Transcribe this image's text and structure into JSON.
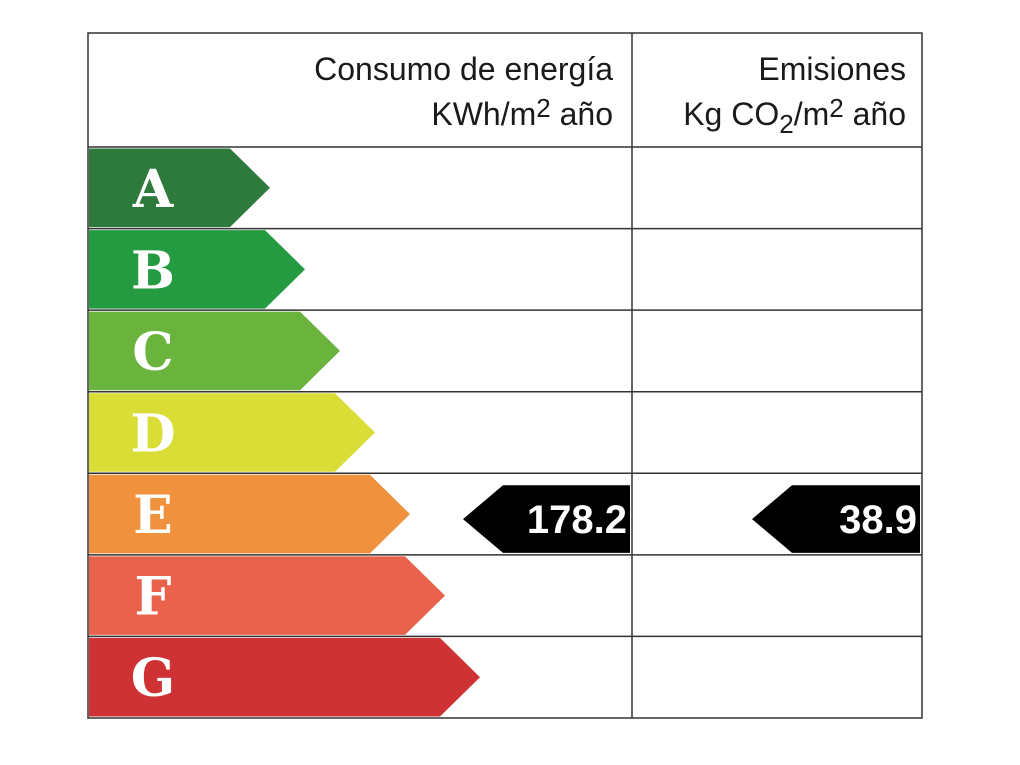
{
  "header": {
    "consumption": {
      "title": "Consumo de energía",
      "unit": {
        "base": "KWh/m",
        "sup": "2",
        "suffix": "año"
      }
    },
    "emissions": {
      "title": "Emisiones",
      "unit": {
        "prefix": "Kg CO",
        "sub": "2",
        "base": "/m",
        "sup": "2",
        "suffix": "año"
      }
    }
  },
  "ratings": [
    {
      "letter": "A",
      "color": "#2e7a3c"
    },
    {
      "letter": "B",
      "color": "#249a41"
    },
    {
      "letter": "C",
      "color": "#6ab33d"
    },
    {
      "letter": "D",
      "color": "#d9dd35"
    },
    {
      "letter": "E",
      "color": "#f0923d"
    },
    {
      "letter": "F",
      "color": "#e9624b"
    },
    {
      "letter": "G",
      "color": "#cf3234"
    }
  ],
  "consumption": {
    "rating": "E",
    "value": "178.2"
  },
  "emissions": {
    "rating": "E",
    "value": "38.9"
  }
}
